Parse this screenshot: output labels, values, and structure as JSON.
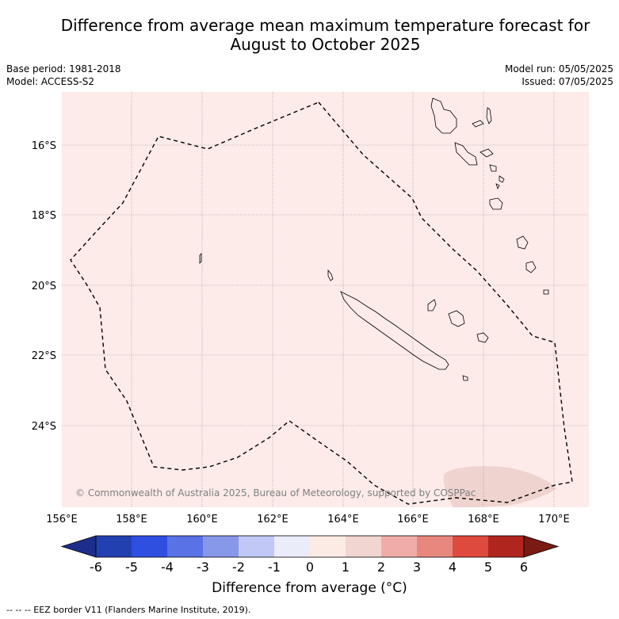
{
  "title_line1": "Difference from average mean maximum temperature forecast for",
  "title_line2": "August to October 2025",
  "base_period": "Base period: 1981-2018",
  "model": "Model: ACCESS-S2",
  "model_run": "Model run: 05/05/2025",
  "issued": "Issued: 07/05/2025",
  "copyright": "© Commonwealth of Australia 2025, Bureau of Meteorology, supported by COSPPac",
  "map": {
    "lon_ticks": [
      "156°E",
      "158°E",
      "160°E",
      "162°E",
      "164°E",
      "166°E",
      "168°E",
      "170°E"
    ],
    "lat_ticks": [
      "16°S",
      "18°S",
      "20°S",
      "22°S",
      "24°S"
    ],
    "background_color": "#fcebe9",
    "anomaly_patch_color": "#efd3cf"
  },
  "colorbar": {
    "ticks": [
      "-6",
      "-5",
      "-4",
      "-3",
      "-2",
      "-1",
      "0",
      "1",
      "2",
      "3",
      "4",
      "5",
      "6"
    ],
    "colors": [
      "#1c2e8a",
      "#2340b0",
      "#2e4fe0",
      "#5972e6",
      "#8797ea",
      "#c1c8f5",
      "#ebecfa",
      "#fcebe5",
      "#f0d5d0",
      "#f0ada8",
      "#e8877d",
      "#de4a3e",
      "#b0261f",
      "#7a1a14"
    ],
    "label": "Difference from average (°C)"
  },
  "footer": "--  --  -- EEZ border V11 (Flanders Marine Institute, 2019)."
}
